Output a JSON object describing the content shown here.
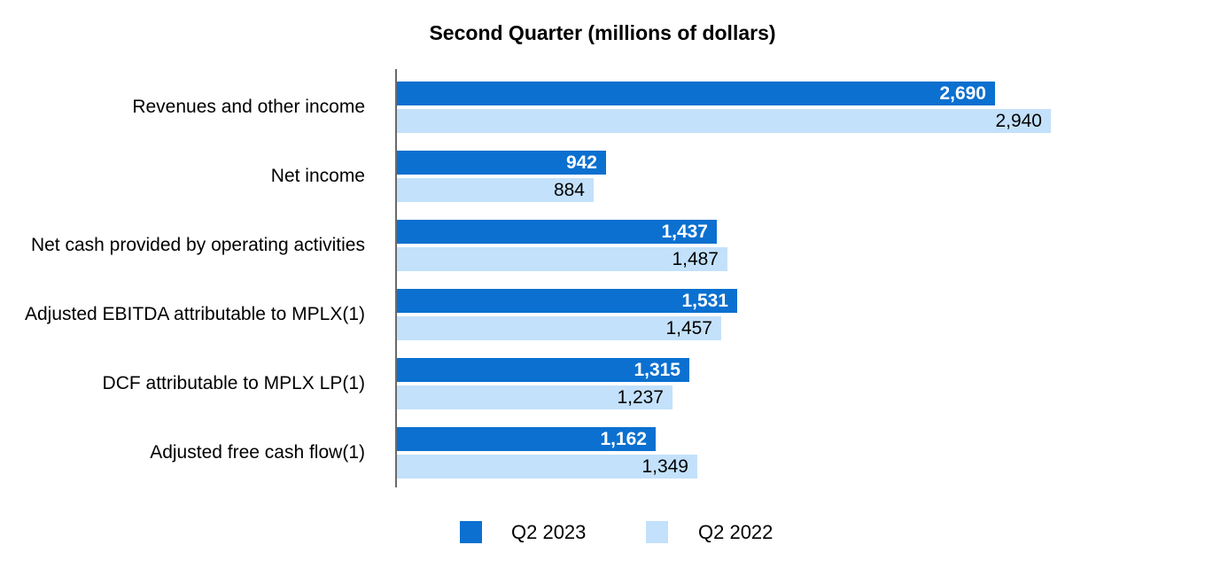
{
  "chart_data": {
    "type": "bar",
    "orientation": "horizontal",
    "title": "Second Quarter (millions of dollars)",
    "categories": [
      "Revenues and other income",
      "Net income",
      "Net cash provided by operating activities",
      "Adjusted EBITDA attributable to MPLX(1)",
      "DCF attributable to MPLX LP(1)",
      "Adjusted free cash flow(1)"
    ],
    "series": [
      {
        "name": "Q2 2023",
        "color": "#0b70d0",
        "values": [
          2690,
          942,
          1437,
          1531,
          1315,
          1162
        ],
        "display_values": [
          "2,690",
          "942",
          "1,437",
          "1,531",
          "1,315",
          "1,162"
        ]
      },
      {
        "name": "Q2 2022",
        "color": "#c3e1fb",
        "values": [
          2940,
          884,
          1487,
          1457,
          1237,
          1349
        ],
        "display_values": [
          "2,940",
          "884",
          "1,487",
          "1,457",
          "1,237",
          "1,349"
        ]
      }
    ],
    "xlim": [
      0,
      2940
    ],
    "grid": false,
    "legend_position": "bottom",
    "value_label_position": "inside-end",
    "axis_color": "#6a6a6a"
  }
}
